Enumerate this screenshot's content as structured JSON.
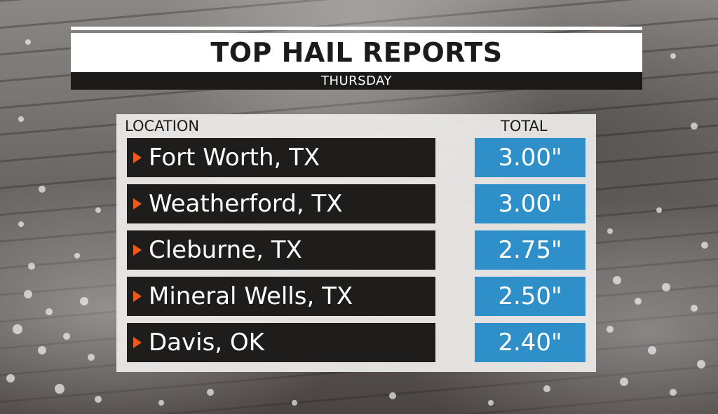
{
  "header": {
    "title": "TOP HAIL REPORTS",
    "subtitle": "THURSDAY"
  },
  "table": {
    "columns": {
      "location": "LOCATION",
      "total": "TOTAL"
    },
    "rows": [
      {
        "location": "Fort Worth, TX",
        "total": "3.00\""
      },
      {
        "location": "Weatherford, TX",
        "total": "3.00\""
      },
      {
        "location": "Cleburne, TX",
        "total": "2.75\""
      },
      {
        "location": "Mineral Wells, TX",
        "total": "2.50\""
      },
      {
        "location": "Davis, OK",
        "total": "2.40\""
      }
    ]
  },
  "colors": {
    "accent_arrow": "#ef5a1c",
    "value_box": "#2e8fc9",
    "location_box": "#1f1d1c",
    "title_bar": "#ffffff",
    "subtitle_bar": "#1c1a19"
  },
  "icons": {
    "row_marker": "triangle-right-icon"
  }
}
